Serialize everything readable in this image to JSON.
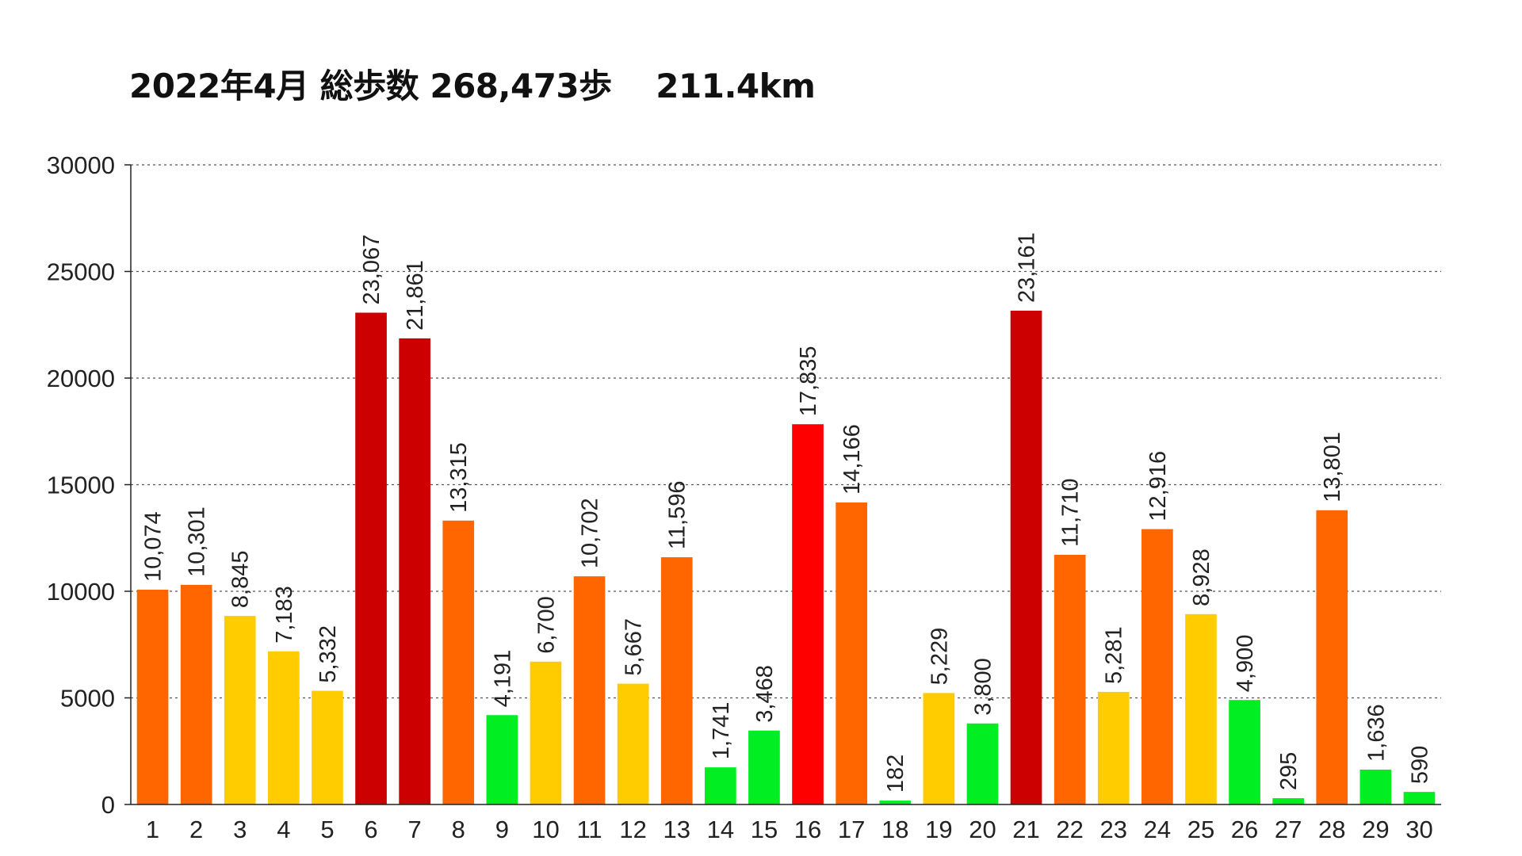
{
  "chart_data": {
    "type": "bar",
    "title": "2022年4月 総歩数 268,473歩　 211.4km",
    "xlabel": "",
    "ylabel": "",
    "ylim": [
      0,
      30000
    ],
    "yticks": [
      "0",
      "5000",
      "10000",
      "15000",
      "20000",
      "25000",
      "30000"
    ],
    "grid": "horizontal-dotted",
    "categories": [
      "1",
      "2",
      "3",
      "4",
      "5",
      "6",
      "7",
      "8",
      "9",
      "10",
      "11",
      "12",
      "13",
      "14",
      "15",
      "16",
      "17",
      "18",
      "19",
      "20",
      "21",
      "22",
      "23",
      "24",
      "25",
      "26",
      "27",
      "28",
      "29",
      "30"
    ],
    "values": [
      10074,
      10301,
      8845,
      7183,
      5332,
      23067,
      21861,
      13315,
      4191,
      6700,
      10702,
      5667,
      11596,
      1741,
      3468,
      17835,
      14166,
      182,
      5229,
      3800,
      23161,
      11710,
      5281,
      12916,
      8928,
      4900,
      295,
      13801,
      1636,
      590
    ],
    "value_labels": [
      "10,074",
      "10,301",
      "8,845",
      "7,183",
      "5,332",
      "23,067",
      "21,861",
      "13,315",
      "4,191",
      "6,700",
      "10,702",
      "5,667",
      "11,596",
      "1,741",
      "3,468",
      "17,835",
      "14,166",
      "182",
      "5,229",
      "3,800",
      "23,161",
      "11,710",
      "5,281",
      "12,916",
      "8,928",
      "4,900",
      "295",
      "13,801",
      "1,636",
      "590"
    ],
    "bar_colors": [
      "#ff6600",
      "#ff6600",
      "#ffcc00",
      "#ffcc00",
      "#ffcc00",
      "#cc0000",
      "#cc0000",
      "#ff6600",
      "#00ee22",
      "#ffcc00",
      "#ff6600",
      "#ffcc00",
      "#ff6600",
      "#00ee22",
      "#00ee22",
      "#ff0000",
      "#ff6600",
      "#00ee22",
      "#ffcc00",
      "#00ee22",
      "#cc0000",
      "#ff6600",
      "#ffcc00",
      "#ff6600",
      "#ffcc00",
      "#00ee22",
      "#00ee22",
      "#ff6600",
      "#00ee22",
      "#00ee22"
    ]
  }
}
